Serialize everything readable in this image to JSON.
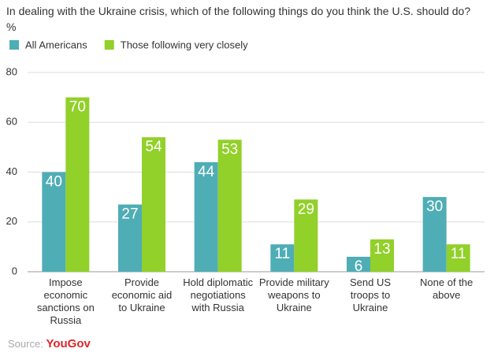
{
  "chart_data": {
    "type": "bar",
    "title": "In dealing with the Ukraine crisis, which of the following things do you think the U.S. should do? %",
    "categories": [
      "Impose economic sanctions on Russia",
      "Provide economic aid to Ukraine",
      "Hold diplomatic negotiations with Russia",
      "Provide military weapons to Ukraine",
      "Send US troops to Ukraine",
      "None of the above"
    ],
    "series": [
      {
        "name": "All Americans",
        "color": "#4fadb5",
        "values": [
          40,
          27,
          44,
          11,
          6,
          30
        ]
      },
      {
        "name": "Those following very closely",
        "color": "#92d02a",
        "values": [
          70,
          54,
          53,
          29,
          13,
          11
        ]
      }
    ],
    "ylim": [
      0,
      80
    ],
    "yticks": [
      0,
      20,
      40,
      60,
      80
    ],
    "grid": true,
    "source_label": "Source:",
    "source": "YouGov"
  }
}
